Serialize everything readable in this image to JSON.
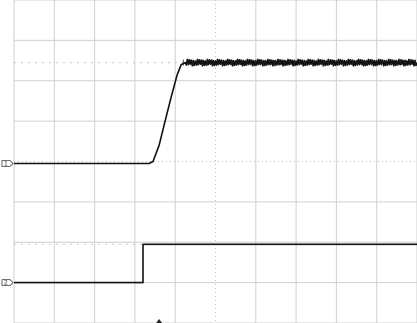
{
  "chart_data": {
    "type": "line",
    "title": "",
    "xlabel": "",
    "ylabel": "",
    "grid": true,
    "x_divisions": 10,
    "y_divisions": 8,
    "xlim": [
      0,
      10
    ],
    "ylim": [
      -4,
      4
    ],
    "trigger_marker_x": 3.6,
    "series": [
      {
        "channel_marker": "1",
        "ground_level": -0.05,
        "x": [
          0,
          3.35,
          3.45,
          3.6,
          3.75,
          3.9,
          4.05,
          4.15,
          4.25,
          10
        ],
        "y": [
          -0.05,
          -0.05,
          0,
          0.4,
          1.0,
          1.6,
          2.15,
          2.4,
          2.45,
          2.45
        ],
        "noise_after_x": 4.2
      },
      {
        "channel_marker": "2",
        "ground_level": -3.0,
        "x": [
          0,
          3.2,
          3.2,
          10
        ],
        "y": [
          -3.0,
          -3.0,
          -2.05,
          -2.05
        ]
      }
    ]
  }
}
